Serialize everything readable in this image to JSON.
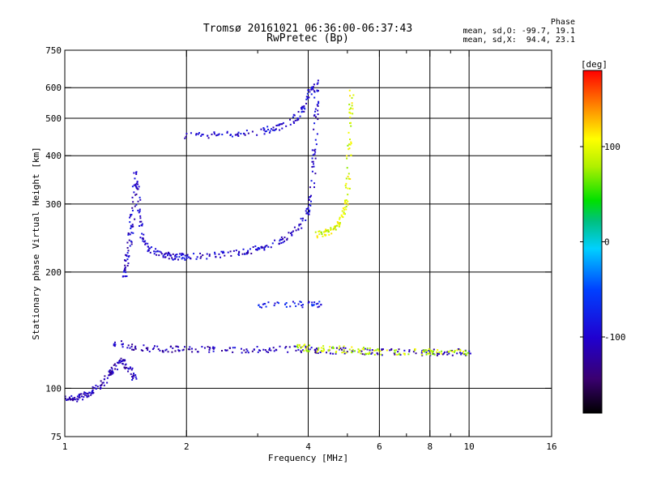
{
  "header": {
    "title_line1": "Tromsø 20161021 06:36:00-06:37:43",
    "title_line2": "RwPretec (Bp)",
    "phase_label": "Phase",
    "phase_o": "mean, sd,O: -99.7, 19.1",
    "phase_x": "mean, sd,X:  94.4, 23.1"
  },
  "colorbar": {
    "unit_label": "[deg]",
    "ticks": [
      {
        "value": 100,
        "label": "100"
      },
      {
        "value": 0,
        "label": "0"
      },
      {
        "value": -100,
        "label": "-100"
      }
    ],
    "range": [
      -180,
      180
    ]
  },
  "chart_data": {
    "type": "scatter",
    "xlabel": "Frequency [MHz]",
    "ylabel": "Stationary phase Virtual Height [km]",
    "xscale": "log",
    "yscale": "log",
    "xlim": [
      1,
      16
    ],
    "ylim": [
      75,
      750
    ],
    "grid": true,
    "x_ticks": [
      {
        "value": 1,
        "label": "1"
      },
      {
        "value": 2,
        "label": "2"
      },
      {
        "value": 4,
        "label": "4"
      },
      {
        "value": 6,
        "label": "6"
      },
      {
        "value": 8,
        "label": "8"
      },
      {
        "value": 10,
        "label": "10"
      },
      {
        "value": 16,
        "label": "16"
      }
    ],
    "x_minor": [
      3,
      5,
      7,
      9
    ],
    "y_ticks": [
      {
        "value": 75,
        "label": "75"
      },
      {
        "value": 100,
        "label": "100"
      },
      {
        "value": 200,
        "label": "200"
      },
      {
        "value": 300,
        "label": "300"
      },
      {
        "value": 400,
        "label": "400"
      },
      {
        "value": 500,
        "label": "500"
      },
      {
        "value": 600,
        "label": "600"
      },
      {
        "value": 750,
        "label": "750"
      }
    ],
    "x_grid": [
      2,
      4,
      6,
      8,
      10
    ],
    "y_grid": [
      100,
      200,
      300,
      400,
      500,
      600
    ],
    "series": [
      {
        "traces": [
          {
            "x": [
              1.0,
              1.05,
              1.1,
              1.15,
              1.2,
              1.25,
              1.3,
              1.35,
              1.4,
              1.45,
              1.5
            ],
            "y": [
              95,
              94,
              95,
              97,
              100,
              104,
              110,
              115,
              118,
              112,
              105
            ],
            "phase": -110
          },
          {
            "x": [
              1.3,
              1.45,
              1.6,
              1.8,
              2.0,
              2.3,
              2.6,
              3.0,
              3.5,
              4.0,
              4.5,
              5.0,
              6.0,
              7.0,
              8.0,
              9.0,
              10.0
            ],
            "y": [
              132,
              128,
              127,
              126,
              126,
              126,
              126,
              126,
              126,
              126,
              125,
              125,
              124,
              124,
              124,
              124,
              124
            ],
            "phase": -110
          },
          {
            "x": [
              1.4,
              1.42,
              1.44,
              1.46,
              1.48,
              1.5,
              1.52,
              1.55,
              1.6,
              1.7,
              1.8,
              1.9,
              2.0,
              2.2,
              2.5,
              2.8,
              3.0,
              3.2,
              3.5,
              3.8,
              4.0,
              4.1,
              4.15,
              4.18,
              4.2
            ],
            "y": [
              190,
              210,
              230,
              260,
              300,
              360,
              300,
              250,
              230,
              222,
              220,
              219,
              219,
              220,
              222,
              226,
              230,
              235,
              245,
              262,
              290,
              340,
              420,
              520,
              640
            ],
            "phase": -100
          },
          {
            "x": [
              2.0,
              2.3,
              2.6,
              3.0,
              3.3,
              3.6,
              3.85,
              4.0,
              4.1
            ],
            "y": [
              452,
              452,
              455,
              460,
              470,
              485,
              520,
              560,
              620
            ],
            "phase": -95
          },
          {
            "x": [
              3.0,
              3.5,
              4.0,
              4.3
            ],
            "y": [
              165,
              165,
              165,
              165
            ],
            "phase": -80
          },
          {
            "x": [
              4.2,
              4.4,
              4.6,
              4.8,
              4.9,
              5.0,
              5.05,
              5.1,
              5.12
            ],
            "y": [
              250,
              252,
              258,
              268,
              285,
              320,
              400,
              500,
              590
            ],
            "phase": 95
          },
          {
            "x": [
              3.8,
              4.0,
              4.5,
              5.0,
              5.5,
              6.0,
              7.0,
              8.0,
              9.0,
              10.0
            ],
            "y": [
              128,
              127,
              126,
              126,
              125,
              124,
              124,
              124,
              124,
              124
            ],
            "phase": 90
          }
        ]
      }
    ]
  }
}
